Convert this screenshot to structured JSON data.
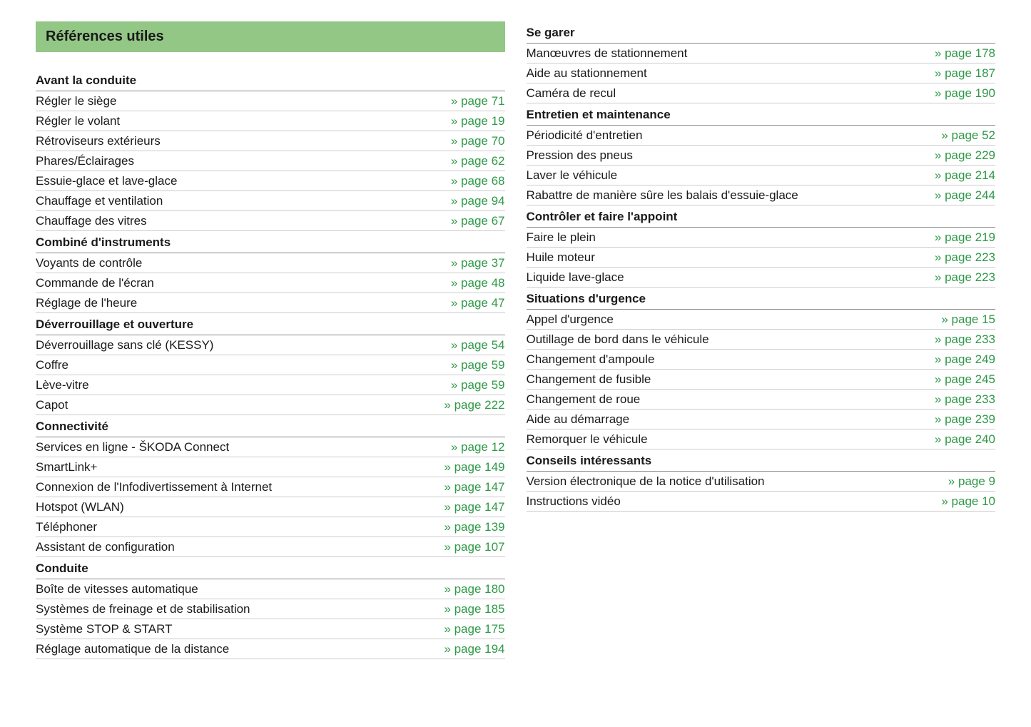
{
  "title": "Références utiles",
  "pageWord": "page",
  "colors": {
    "titleBg": "#93c785",
    "link": "#2e9947",
    "text": "#1a1a1a",
    "hr": "#888888",
    "rowBorder": "#cccccc"
  },
  "leftSections": [
    {
      "header": "Avant la conduite",
      "items": [
        {
          "label": "Régler le siège",
          "page": 71
        },
        {
          "label": "Régler le volant",
          "page": 19
        },
        {
          "label": "Rétroviseurs extérieurs",
          "page": 70
        },
        {
          "label": "Phares/Éclairages",
          "page": 62
        },
        {
          "label": "Essuie-glace et lave-glace",
          "page": 68
        },
        {
          "label": "Chauffage et ventilation",
          "page": 94
        },
        {
          "label": "Chauffage des vitres",
          "page": 67
        }
      ]
    },
    {
      "header": "Combiné d'instruments",
      "items": [
        {
          "label": "Voyants de contrôle",
          "page": 37
        },
        {
          "label": "Commande de l'écran",
          "page": 48
        },
        {
          "label": "Réglage de l'heure",
          "page": 47
        }
      ]
    },
    {
      "header": "Déverrouillage et ouverture",
      "items": [
        {
          "label": "Déverrouillage sans clé (KESSY)",
          "page": 54
        },
        {
          "label": "Coffre",
          "page": 59
        },
        {
          "label": "Lève-vitre",
          "page": 59
        },
        {
          "label": "Capot",
          "page": 222
        }
      ]
    },
    {
      "header": "Connectivité",
      "items": [
        {
          "label": "Services en ligne - ŠKODA Connect",
          "page": 12
        },
        {
          "label": "SmartLink+",
          "page": 149
        },
        {
          "label": "Connexion de l'Infodivertissement à Internet",
          "page": 147
        },
        {
          "label": "Hotspot (WLAN)",
          "page": 147
        },
        {
          "label": "Téléphoner",
          "page": 139
        },
        {
          "label": "Assistant de configuration",
          "page": 107
        }
      ]
    },
    {
      "header": "Conduite",
      "items": [
        {
          "label": "Boîte de vitesses automatique",
          "page": 180
        },
        {
          "label": "Systèmes de freinage et de stabilisation",
          "page": 185
        },
        {
          "label": "Système STOP & START",
          "page": 175
        },
        {
          "label": "Réglage automatique de la distance",
          "page": 194
        }
      ]
    }
  ],
  "rightSections": [
    {
      "header": "Se garer",
      "items": [
        {
          "label": "Manœuvres de stationnement",
          "page": 178
        },
        {
          "label": "Aide au stationnement",
          "page": 187
        },
        {
          "label": "Caméra de recul",
          "page": 190
        }
      ]
    },
    {
      "header": "Entretien et maintenance",
      "items": [
        {
          "label": "Périodicité d'entretien",
          "page": 52
        },
        {
          "label": "Pression des pneus",
          "page": 229
        },
        {
          "label": "Laver le véhicule",
          "page": 214
        },
        {
          "label": "Rabattre de manière sûre les balais d'essuie-glace",
          "page": 244
        }
      ]
    },
    {
      "header": "Contrôler et faire l'appoint",
      "items": [
        {
          "label": "Faire le plein",
          "page": 219
        },
        {
          "label": "Huile moteur",
          "page": 223
        },
        {
          "label": "Liquide lave-glace",
          "page": 223
        }
      ]
    },
    {
      "header": "Situations d'urgence",
      "items": [
        {
          "label": "Appel d'urgence",
          "page": 15
        },
        {
          "label": "Outillage de bord dans le véhicule",
          "page": 233
        },
        {
          "label": "Changement d'ampoule",
          "page": 249
        },
        {
          "label": "Changement de fusible",
          "page": 245
        },
        {
          "label": "Changement de roue",
          "page": 233
        },
        {
          "label": "Aide au démarrage",
          "page": 239
        },
        {
          "label": "Remorquer le véhicule",
          "page": 240
        }
      ]
    },
    {
      "header": "Conseils intéressants",
      "items": [
        {
          "label": "Version électronique de la notice d'utilisation",
          "page": 9
        },
        {
          "label": "Instructions vidéo",
          "page": 10
        }
      ]
    }
  ]
}
